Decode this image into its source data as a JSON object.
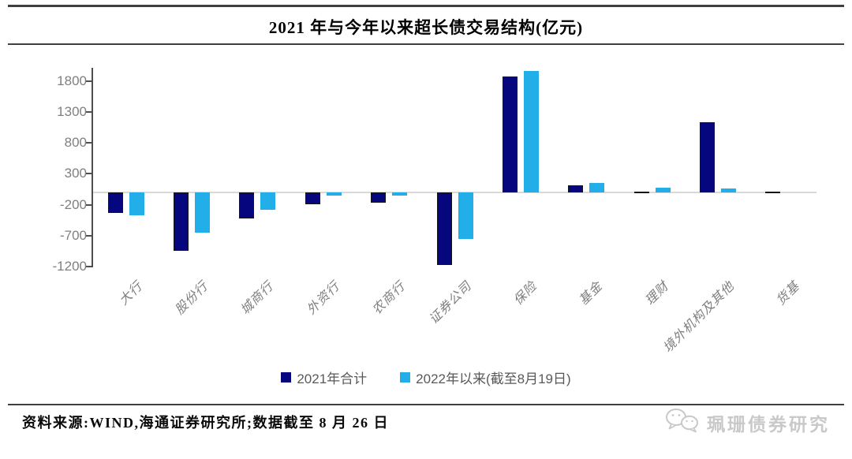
{
  "header": {
    "title": "2021 年与今年以来超长债交易结构(亿元)"
  },
  "chart_data": {
    "type": "bar",
    "title": "2021 年与今年以来超长债交易结构(亿元)",
    "unit": "亿元",
    "categories": [
      "大行",
      "股份行",
      "城商行",
      "外资行",
      "农商行",
      "证券公司",
      "保险",
      "基金",
      "理财",
      "境外机构及其他",
      "货基"
    ],
    "series": [
      {
        "name": "2021年合计",
        "color": "#06067e",
        "values": [
          -330,
          -950,
          -420,
          -190,
          -170,
          -1170,
          1870,
          120,
          10,
          1130,
          10
        ]
      },
      {
        "name": "2022年以来(截至8月19日)",
        "color": "#22aee8",
        "values": [
          -375,
          -650,
          -280,
          -45,
          -55,
          -750,
          1970,
          155,
          75,
          60,
          0
        ]
      }
    ],
    "yticks": [
      1800,
      1300,
      800,
      300,
      -200,
      -700,
      -1200
    ],
    "ylim": [
      -1250,
      2040
    ],
    "xlabel": "",
    "ylabel": "",
    "grid": false,
    "zero_line": true,
    "legend_position": "bottom-center"
  },
  "footer": {
    "source": "资料来源:WIND,海通证券研究所;数据截至 8 月 26 日"
  },
  "watermark": {
    "text": "珮珊债券研究",
    "icon": "wechat-chat-bubbles-icon"
  },
  "colors": {
    "navy": "#06067e",
    "light_blue": "#22aee8",
    "axis_text": "#7f7f7f",
    "legend_text": "#595959",
    "zero_line": "#d9d9d9",
    "rule": "#3f3f3f",
    "watermark": "#c9c9c9"
  }
}
